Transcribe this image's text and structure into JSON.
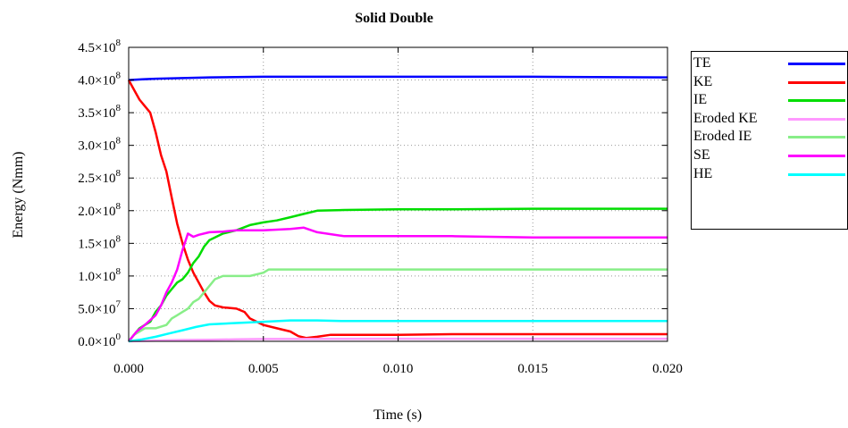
{
  "chart_data": {
    "type": "line",
    "title": "Solid Double",
    "xlabel": "Time (s)",
    "ylabel": "Energy (Nmm)",
    "xlim": [
      0,
      0.02
    ],
    "ylim": [
      0,
      450000000
    ],
    "x_ticks": [
      0,
      0.005,
      0.01,
      0.015,
      0.02
    ],
    "x_tick_labels": [
      "0.000",
      "0.005",
      "0.010",
      "0.015",
      "0.020"
    ],
    "y_ticks": [
      0,
      50000000,
      100000000,
      150000000,
      200000000,
      250000000,
      300000000,
      350000000,
      400000000,
      450000000
    ],
    "y_tick_labels": [
      {
        "mantissa": "0.0×10",
        "exp": "0"
      },
      {
        "mantissa": "5.0×10",
        "exp": "7"
      },
      {
        "mantissa": "1.0×10",
        "exp": "8"
      },
      {
        "mantissa": "1.5×10",
        "exp": "8"
      },
      {
        "mantissa": "2.0×10",
        "exp": "8"
      },
      {
        "mantissa": "2.5×10",
        "exp": "8"
      },
      {
        "mantissa": "3.0×10",
        "exp": "8"
      },
      {
        "mantissa": "3.5×10",
        "exp": "8"
      },
      {
        "mantissa": "4.0×10",
        "exp": "8"
      },
      {
        "mantissa": "4.5×10",
        "exp": "8"
      }
    ],
    "grid": true,
    "legend_position": "right",
    "series": [
      {
        "name": "TE",
        "color": "#0000ff",
        "x": [
          0,
          0.0005,
          0.001,
          0.002,
          0.003,
          0.005,
          0.01,
          0.015,
          0.02
        ],
        "y": [
          400000000,
          401000000,
          402000000,
          403000000,
          404000000,
          405000000,
          405000000,
          405000000,
          404000000
        ]
      },
      {
        "name": "KE",
        "color": "#ff0000",
        "x": [
          0,
          0.0002,
          0.0004,
          0.0006,
          0.0008,
          0.001,
          0.0012,
          0.0014,
          0.0016,
          0.0018,
          0.002,
          0.0022,
          0.0024,
          0.0026,
          0.0028,
          0.003,
          0.0032,
          0.0035,
          0.004,
          0.0043,
          0.0045,
          0.005,
          0.0055,
          0.006,
          0.0063,
          0.0066,
          0.007,
          0.0075,
          0.008,
          0.01,
          0.012,
          0.015,
          0.02
        ],
        "y": [
          400000000,
          385000000,
          370000000,
          360000000,
          350000000,
          320000000,
          285000000,
          260000000,
          220000000,
          180000000,
          150000000,
          125000000,
          105000000,
          90000000,
          75000000,
          62000000,
          55000000,
          52000000,
          50000000,
          45000000,
          35000000,
          25000000,
          20000000,
          15000000,
          8000000,
          5000000,
          7000000,
          10000000,
          10000000,
          10000000,
          11000000,
          11000000,
          11000000
        ]
      },
      {
        "name": "IE",
        "color": "#00dd00",
        "x": [
          0,
          0.0002,
          0.0004,
          0.0006,
          0.0008,
          0.001,
          0.0012,
          0.0014,
          0.0016,
          0.0018,
          0.002,
          0.0022,
          0.0024,
          0.0026,
          0.0028,
          0.003,
          0.0035,
          0.004,
          0.0045,
          0.005,
          0.0055,
          0.006,
          0.0065,
          0.007,
          0.008,
          0.01,
          0.012,
          0.015,
          0.02
        ],
        "y": [
          0,
          10000000,
          20000000,
          25000000,
          30000000,
          45000000,
          55000000,
          70000000,
          80000000,
          90000000,
          95000000,
          105000000,
          120000000,
          130000000,
          145000000,
          155000000,
          165000000,
          170000000,
          178000000,
          182000000,
          185000000,
          190000000,
          195000000,
          200000000,
          201000000,
          202000000,
          202000000,
          203000000,
          203000000
        ]
      },
      {
        "name": "Eroded KE",
        "color": "#ff99ff",
        "x": [
          0,
          0.001,
          0.002,
          0.003,
          0.004,
          0.005,
          0.01,
          0.015,
          0.02
        ],
        "y": [
          0,
          1000000,
          2000000,
          2500000,
          3000000,
          3500000,
          4000000,
          4000000,
          4000000
        ]
      },
      {
        "name": "Eroded IE",
        "color": "#88ee88",
        "x": [
          0,
          0.0002,
          0.0004,
          0.0006,
          0.001,
          0.0014,
          0.0016,
          0.0018,
          0.002,
          0.0022,
          0.0024,
          0.0026,
          0.0028,
          0.003,
          0.0032,
          0.0035,
          0.004,
          0.0045,
          0.005,
          0.0052,
          0.0055,
          0.006,
          0.008,
          0.01,
          0.015,
          0.02
        ],
        "y": [
          0,
          10000000,
          15000000,
          20000000,
          20000000,
          25000000,
          35000000,
          40000000,
          45000000,
          50000000,
          60000000,
          65000000,
          75000000,
          85000000,
          95000000,
          100000000,
          100000000,
          100000000,
          105000000,
          110000000,
          110000000,
          110000000,
          110000000,
          110000000,
          110000000,
          110000000
        ]
      },
      {
        "name": "SE",
        "color": "#ff00ff",
        "x": [
          0,
          0.0003,
          0.0006,
          0.001,
          0.0012,
          0.0014,
          0.0016,
          0.0018,
          0.002,
          0.0022,
          0.0024,
          0.0026,
          0.003,
          0.0035,
          0.004,
          0.005,
          0.006,
          0.0065,
          0.007,
          0.008,
          0.01,
          0.012,
          0.015,
          0.02
        ],
        "y": [
          0,
          15000000,
          25000000,
          40000000,
          55000000,
          75000000,
          90000000,
          110000000,
          140000000,
          165000000,
          160000000,
          163000000,
          167000000,
          168000000,
          170000000,
          170000000,
          172000000,
          174000000,
          167000000,
          161000000,
          161000000,
          161000000,
          159000000,
          159000000
        ]
      },
      {
        "name": "HE",
        "color": "#00ffff",
        "x": [
          0,
          0.0005,
          0.001,
          0.0015,
          0.002,
          0.0025,
          0.003,
          0.004,
          0.005,
          0.006,
          0.007,
          0.008,
          0.01,
          0.015,
          0.02
        ],
        "y": [
          0,
          3000000,
          7000000,
          12000000,
          17000000,
          22000000,
          26000000,
          28000000,
          30000000,
          32000000,
          32000000,
          31000000,
          31000000,
          31000000,
          31000000
        ]
      }
    ]
  }
}
